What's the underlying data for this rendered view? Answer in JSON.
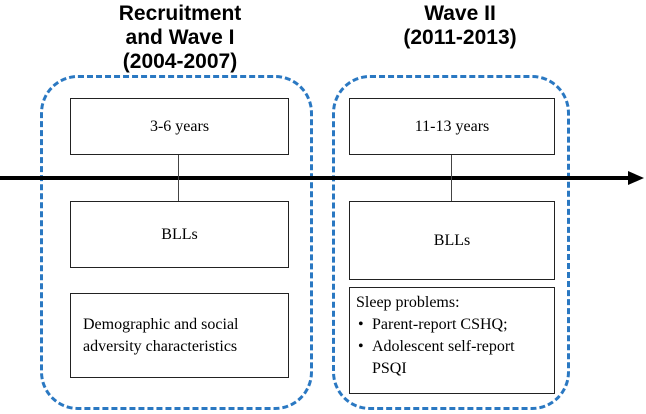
{
  "waves": [
    {
      "title_lines": [
        "Recruitment",
        "and Wave I",
        "(2004-2007)"
      ],
      "age": "3-6 years",
      "measure": "BLLs",
      "details_text": "Demographic and social adversity characteristics"
    },
    {
      "title_lines": [
        "Wave II",
        "(2011-2013)"
      ],
      "age": "11-13 years",
      "measure": "BLLs",
      "details_heading": "Sleep problems:",
      "details_items": [
        "Parent-report CSHQ;",
        "Adolescent self-report PSQI"
      ]
    }
  ],
  "colors": {
    "group_border": "#2a78c2",
    "timeline": "#000000"
  }
}
